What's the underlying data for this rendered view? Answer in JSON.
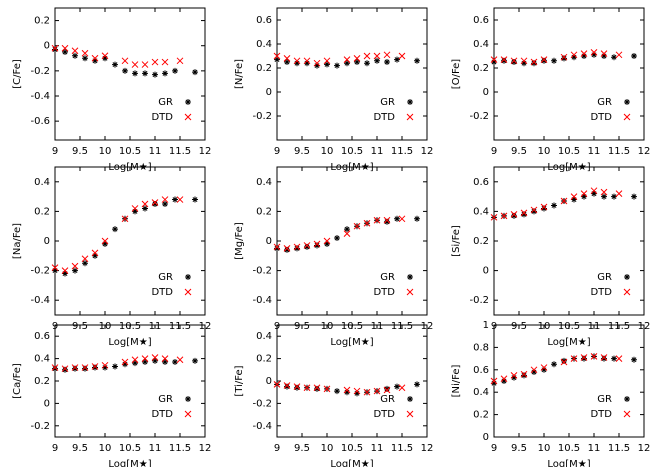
{
  "chart_data": [
    {
      "type": "scatter",
      "ylabel": "[C/Fe]",
      "xlabel": "Log[M★]",
      "xlim": [
        9,
        12
      ],
      "xticks": [
        9,
        9.5,
        10,
        10.5,
        11,
        11.5,
        12
      ],
      "ylim": [
        -0.75,
        0.3
      ],
      "yticks": [
        -0.6,
        -0.4,
        -0.2,
        0,
        0.2
      ],
      "series": [
        {
          "name": "GR",
          "color": "#000000",
          "marker": "star",
          "x": [
            9.0,
            9.2,
            9.4,
            9.6,
            9.8,
            10.0,
            10.2,
            10.4,
            10.6,
            10.8,
            11.0,
            11.2,
            11.4,
            11.8
          ],
          "values": [
            -0.03,
            -0.05,
            -0.08,
            -0.1,
            -0.12,
            -0.1,
            -0.15,
            -0.2,
            -0.22,
            -0.22,
            -0.23,
            -0.22,
            -0.2,
            -0.21
          ]
        },
        {
          "name": "DTD",
          "color": "#ff0000",
          "marker": "cross",
          "x": [
            9.0,
            9.2,
            9.4,
            9.6,
            9.8,
            10.0,
            10.4,
            10.6,
            10.8,
            11.0,
            11.2,
            11.5
          ],
          "values": [
            -0.02,
            -0.02,
            -0.04,
            -0.06,
            -0.1,
            -0.08,
            -0.12,
            -0.15,
            -0.15,
            -0.13,
            -0.13,
            -0.12
          ]
        }
      ]
    },
    {
      "type": "scatter",
      "ylabel": "[N/Fe]",
      "xlabel": "Log[M★]",
      "xlim": [
        9,
        12
      ],
      "xticks": [
        9,
        9.5,
        10,
        10.5,
        11,
        11.5,
        12
      ],
      "ylim": [
        -0.4,
        0.7
      ],
      "yticks": [
        -0.2,
        0,
        0.2,
        0.4,
        0.6
      ],
      "series": [
        {
          "name": "GR",
          "color": "#000000",
          "marker": "star",
          "x": [
            9.0,
            9.2,
            9.4,
            9.6,
            9.8,
            10.0,
            10.2,
            10.4,
            10.6,
            10.8,
            11.0,
            11.2,
            11.4,
            11.8
          ],
          "values": [
            0.27,
            0.25,
            0.24,
            0.24,
            0.22,
            0.23,
            0.22,
            0.24,
            0.25,
            0.24,
            0.26,
            0.25,
            0.27,
            0.26
          ]
        },
        {
          "name": "DTD",
          "color": "#ff0000",
          "marker": "cross",
          "x": [
            9.0,
            9.2,
            9.4,
            9.6,
            9.8,
            10.0,
            10.4,
            10.6,
            10.8,
            11.0,
            11.2,
            11.5
          ],
          "values": [
            0.3,
            0.28,
            0.26,
            0.26,
            0.24,
            0.26,
            0.27,
            0.28,
            0.3,
            0.3,
            0.31,
            0.3
          ]
        }
      ]
    },
    {
      "type": "scatter",
      "ylabel": "[O/Fe]",
      "xlabel": "Log[M★]",
      "xlim": [
        9,
        12
      ],
      "xticks": [
        9,
        9.5,
        10,
        10.5,
        11,
        11.5,
        12
      ],
      "ylim": [
        -0.4,
        0.7
      ],
      "yticks": [
        -0.2,
        0,
        0.2,
        0.4,
        0.6
      ],
      "series": [
        {
          "name": "GR",
          "color": "#000000",
          "marker": "star",
          "x": [
            9.0,
            9.2,
            9.4,
            9.6,
            9.8,
            10.0,
            10.2,
            10.4,
            10.6,
            10.8,
            11.0,
            11.2,
            11.4,
            11.8
          ],
          "values": [
            0.25,
            0.26,
            0.25,
            0.24,
            0.24,
            0.26,
            0.26,
            0.28,
            0.29,
            0.3,
            0.31,
            0.3,
            0.29,
            0.3
          ]
        },
        {
          "name": "DTD",
          "color": "#ff0000",
          "marker": "cross",
          "x": [
            9.0,
            9.2,
            9.4,
            9.6,
            9.8,
            10.0,
            10.4,
            10.6,
            10.8,
            11.0,
            11.2,
            11.5
          ],
          "values": [
            0.27,
            0.27,
            0.26,
            0.26,
            0.25,
            0.27,
            0.29,
            0.31,
            0.32,
            0.33,
            0.32,
            0.31
          ]
        }
      ]
    },
    {
      "type": "scatter",
      "ylabel": "[Na/Fe]",
      "xlabel": "Log[M★]",
      "xlim": [
        9,
        12
      ],
      "xticks": [
        9,
        9.5,
        10,
        10.5,
        11,
        11.5,
        12
      ],
      "ylim": [
        -0.5,
        0.5
      ],
      "yticks": [
        -0.4,
        -0.2,
        0,
        0.2,
        0.4
      ],
      "series": [
        {
          "name": "GR",
          "color": "#000000",
          "marker": "star",
          "x": [
            9.0,
            9.2,
            9.4,
            9.6,
            9.8,
            10.0,
            10.2,
            10.4,
            10.6,
            10.8,
            11.0,
            11.2,
            11.4,
            11.8
          ],
          "values": [
            -0.2,
            -0.22,
            -0.2,
            -0.15,
            -0.1,
            -0.02,
            0.08,
            0.15,
            0.2,
            0.22,
            0.25,
            0.25,
            0.28,
            0.28
          ]
        },
        {
          "name": "DTD",
          "color": "#ff0000",
          "marker": "cross",
          "x": [
            9.0,
            9.2,
            9.4,
            9.6,
            9.8,
            10.0,
            10.4,
            10.6,
            10.8,
            11.0,
            11.2,
            11.5
          ],
          "values": [
            -0.18,
            -0.2,
            -0.17,
            -0.12,
            -0.08,
            0.0,
            0.15,
            0.22,
            0.25,
            0.26,
            0.28,
            0.28
          ]
        }
      ]
    },
    {
      "type": "scatter",
      "ylabel": "[Mg/Fe]",
      "xlabel": "Log[M★]",
      "xlim": [
        9,
        12
      ],
      "xticks": [
        9,
        9.5,
        10,
        10.5,
        11,
        11.5,
        12
      ],
      "ylim": [
        -0.5,
        0.5
      ],
      "yticks": [
        -0.4,
        -0.2,
        0,
        0.2,
        0.4
      ],
      "series": [
        {
          "name": "GR",
          "color": "#000000",
          "marker": "star",
          "x": [
            9.0,
            9.2,
            9.4,
            9.6,
            9.8,
            10.0,
            10.2,
            10.4,
            10.6,
            10.8,
            11.0,
            11.2,
            11.4,
            11.8
          ],
          "values": [
            -0.05,
            -0.06,
            -0.05,
            -0.04,
            -0.03,
            -0.02,
            0.02,
            0.08,
            0.1,
            0.12,
            0.14,
            0.13,
            0.15,
            0.15
          ]
        },
        {
          "name": "DTD",
          "color": "#ff0000",
          "marker": "cross",
          "x": [
            9.0,
            9.2,
            9.4,
            9.6,
            9.8,
            10.0,
            10.4,
            10.6,
            10.8,
            11.0,
            11.2,
            11.5
          ],
          "values": [
            -0.04,
            -0.05,
            -0.04,
            -0.03,
            -0.02,
            0.0,
            0.05,
            0.1,
            0.12,
            0.14,
            0.14,
            0.15
          ]
        }
      ]
    },
    {
      "type": "scatter",
      "ylabel": "[Si/Fe]",
      "xlabel": "Log[M★]",
      "xlim": [
        9,
        12
      ],
      "xticks": [
        9,
        9.5,
        10,
        10.5,
        11,
        11.5,
        12
      ],
      "ylim": [
        -0.3,
        0.7
      ],
      "yticks": [
        -0.2,
        0,
        0.2,
        0.4,
        0.6
      ],
      "series": [
        {
          "name": "GR",
          "color": "#000000",
          "marker": "star",
          "x": [
            9.0,
            9.2,
            9.4,
            9.6,
            9.8,
            10.0,
            10.2,
            10.4,
            10.6,
            10.8,
            11.0,
            11.2,
            11.4,
            11.8
          ],
          "values": [
            0.36,
            0.37,
            0.37,
            0.38,
            0.4,
            0.42,
            0.44,
            0.47,
            0.48,
            0.5,
            0.52,
            0.5,
            0.5,
            0.5
          ]
        },
        {
          "name": "DTD",
          "color": "#ff0000",
          "marker": "cross",
          "x": [
            9.0,
            9.2,
            9.4,
            9.6,
            9.8,
            10.0,
            10.4,
            10.6,
            10.8,
            11.0,
            11.2,
            11.5
          ],
          "values": [
            0.36,
            0.37,
            0.38,
            0.39,
            0.41,
            0.43,
            0.47,
            0.5,
            0.52,
            0.54,
            0.53,
            0.52
          ]
        }
      ]
    },
    {
      "type": "scatter",
      "ylabel": "[Ca/Fe]",
      "xlabel": "Log[M★]",
      "xlim": [
        9,
        12
      ],
      "xticks": [
        9,
        9.5,
        10,
        10.5,
        11,
        11.5,
        12
      ],
      "ylim": [
        -0.3,
        0.7
      ],
      "yticks": [
        -0.2,
        0,
        0.2,
        0.4,
        0.6
      ],
      "series": [
        {
          "name": "GR",
          "color": "#000000",
          "marker": "star",
          "x": [
            9.0,
            9.2,
            9.4,
            9.6,
            9.8,
            10.0,
            10.2,
            10.4,
            10.6,
            10.8,
            11.0,
            11.2,
            11.4,
            11.8
          ],
          "values": [
            0.31,
            0.3,
            0.31,
            0.31,
            0.32,
            0.32,
            0.33,
            0.35,
            0.36,
            0.37,
            0.38,
            0.37,
            0.37,
            0.38
          ]
        },
        {
          "name": "DTD",
          "color": "#ff0000",
          "marker": "cross",
          "x": [
            9.0,
            9.2,
            9.4,
            9.6,
            9.8,
            10.0,
            10.4,
            10.6,
            10.8,
            11.0,
            11.2,
            11.5
          ],
          "values": [
            0.32,
            0.31,
            0.32,
            0.32,
            0.33,
            0.34,
            0.37,
            0.39,
            0.4,
            0.41,
            0.4,
            0.39
          ]
        }
      ]
    },
    {
      "type": "scatter",
      "ylabel": "[Ti/Fe]",
      "xlabel": "Log[M★]",
      "xlim": [
        9,
        12
      ],
      "xticks": [
        9,
        9.5,
        10,
        10.5,
        11,
        11.5,
        12
      ],
      "ylim": [
        -0.5,
        0.5
      ],
      "yticks": [
        -0.4,
        -0.2,
        0,
        0.2,
        0.4
      ],
      "series": [
        {
          "name": "GR",
          "color": "#000000",
          "marker": "star",
          "x": [
            9.0,
            9.2,
            9.4,
            9.6,
            9.8,
            10.0,
            10.2,
            10.4,
            10.6,
            10.8,
            11.0,
            11.2,
            11.4,
            11.8
          ],
          "values": [
            -0.03,
            -0.05,
            -0.06,
            -0.06,
            -0.07,
            -0.07,
            -0.09,
            -0.1,
            -0.11,
            -0.1,
            -0.09,
            -0.07,
            -0.05,
            -0.03
          ]
        },
        {
          "name": "DTD",
          "color": "#ff0000",
          "marker": "cross",
          "x": [
            9.0,
            9.2,
            9.4,
            9.6,
            9.8,
            10.0,
            10.4,
            10.6,
            10.8,
            11.0,
            11.2,
            11.5
          ],
          "values": [
            -0.03,
            -0.04,
            -0.05,
            -0.06,
            -0.06,
            -0.07,
            -0.08,
            -0.09,
            -0.1,
            -0.09,
            -0.08,
            -0.06
          ]
        }
      ]
    },
    {
      "type": "scatter",
      "ylabel": "[Ni/Fe]",
      "xlabel": "Log[M★]",
      "xlim": [
        9,
        12
      ],
      "xticks": [
        9,
        9.5,
        10,
        10.5,
        11,
        11.5,
        12
      ],
      "ylim": [
        0,
        1
      ],
      "yticks": [
        0,
        0.2,
        0.4,
        0.6,
        0.8,
        1
      ],
      "series": [
        {
          "name": "GR",
          "color": "#000000",
          "marker": "star",
          "x": [
            9.0,
            9.2,
            9.4,
            9.6,
            9.8,
            10.0,
            10.2,
            10.4,
            10.6,
            10.8,
            11.0,
            11.2,
            11.4,
            11.8
          ],
          "values": [
            0.48,
            0.5,
            0.53,
            0.55,
            0.58,
            0.6,
            0.65,
            0.68,
            0.7,
            0.7,
            0.72,
            0.7,
            0.7,
            0.69
          ]
        },
        {
          "name": "DTD",
          "color": "#ff0000",
          "marker": "cross",
          "x": [
            9.0,
            9.2,
            9.4,
            9.6,
            9.8,
            10.0,
            10.4,
            10.6,
            10.8,
            11.0,
            11.2,
            11.5
          ],
          "values": [
            0.5,
            0.52,
            0.55,
            0.56,
            0.6,
            0.62,
            0.67,
            0.7,
            0.71,
            0.72,
            0.71,
            0.7
          ]
        }
      ]
    }
  ]
}
